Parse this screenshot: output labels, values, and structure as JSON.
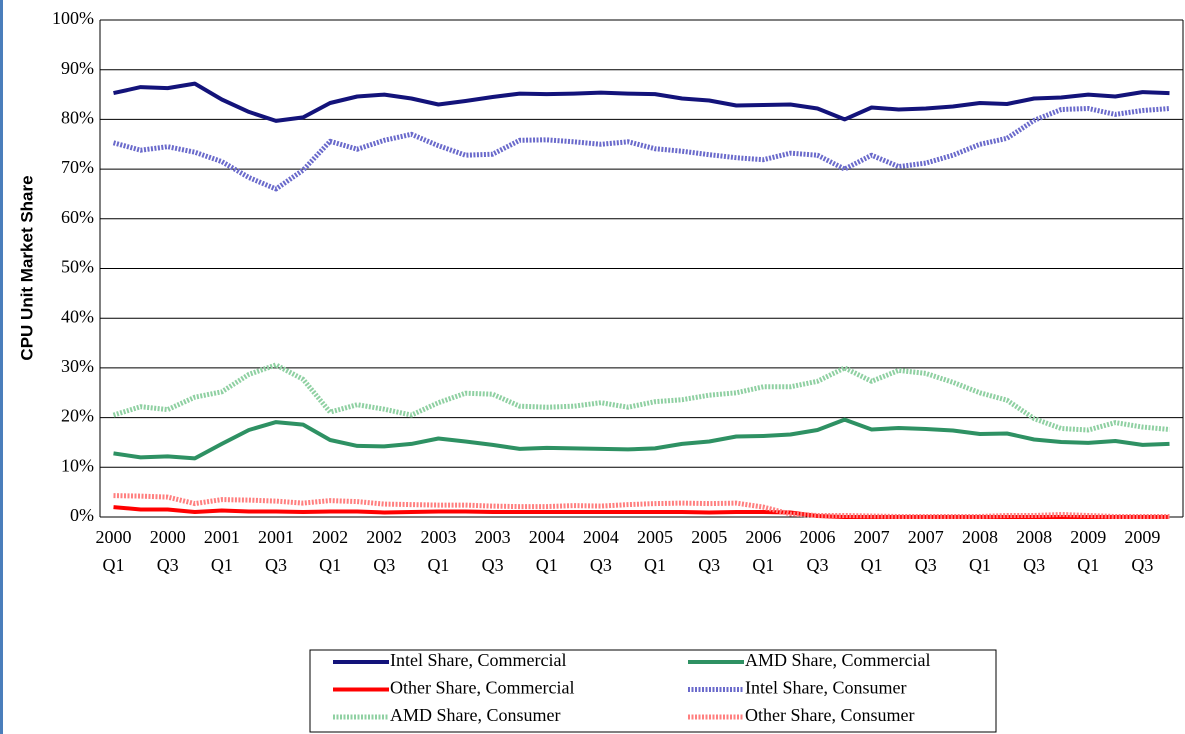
{
  "chart_data": {
    "type": "line",
    "y_label": "CPU Unit Market Share",
    "categories": [
      "2000 Q1",
      null,
      "2000 Q3",
      null,
      "2001 Q1",
      null,
      "2001 Q3",
      null,
      "2002 Q1",
      null,
      "2002 Q3",
      null,
      "2003 Q1",
      null,
      "2003 Q3",
      null,
      "2004 Q1",
      null,
      "2004 Q3",
      null,
      "2005 Q1",
      null,
      "2005 Q3",
      null,
      "2006 Q1",
      null,
      "2006 Q3",
      null,
      "2007 Q1",
      null,
      "2007 Q3",
      null,
      "2008 Q1",
      null,
      "2008 Q3",
      null,
      "2009 Q1",
      null,
      "2009 Q3",
      null
    ],
    "ylim": [
      0,
      100
    ],
    "yticks": [
      {
        "value": 0,
        "label": "0%"
      },
      {
        "value": 10,
        "label": "10%"
      },
      {
        "value": 20,
        "label": "20%"
      },
      {
        "value": 30,
        "label": "30%"
      },
      {
        "value": 40,
        "label": "40%"
      },
      {
        "value": 50,
        "label": "50%"
      },
      {
        "value": 60,
        "label": "60%"
      },
      {
        "value": 70,
        "label": "70%"
      },
      {
        "value": 80,
        "label": "80%"
      },
      {
        "value": 90,
        "label": "90%"
      },
      {
        "value": 100,
        "label": "100%"
      }
    ],
    "grid": true,
    "legend": "bottom",
    "series": [
      {
        "name": "Intel Share, Commercial",
        "color": "#13137a",
        "line_style": "solid",
        "values": [
          85.3,
          86.5,
          86.3,
          87.2,
          84,
          81.5,
          79.7,
          80.4,
          83.3,
          84.6,
          85,
          84.2,
          83,
          83.7,
          84.5,
          85.2,
          85.1,
          85.2,
          85.4,
          85.2,
          85.1,
          84.2,
          83.8,
          82.8,
          82.9,
          83,
          82.2,
          80,
          82.4,
          82,
          82.2,
          82.6,
          83.3,
          83.1,
          84.2,
          84.4,
          85,
          84.6,
          85.5,
          85.3
        ]
      },
      {
        "name": "AMD Share, Commercial",
        "color": "#2e9163",
        "line_style": "solid",
        "values": [
          12.8,
          12,
          12.2,
          11.8,
          14.7,
          17.5,
          19.1,
          18.6,
          15.5,
          14.3,
          14.2,
          14.7,
          15.8,
          15.2,
          14.5,
          13.7,
          13.9,
          13.8,
          13.7,
          13.6,
          13.8,
          14.7,
          15.2,
          16.2,
          16.3,
          16.6,
          17.5,
          19.6,
          17.6,
          17.9,
          17.7,
          17.4,
          16.7,
          16.8,
          15.6,
          15.1,
          14.9,
          15.3,
          14.5,
          14.7
        ]
      },
      {
        "name": "Other Share, Commercial",
        "color": "#ff0000",
        "line_style": "solid",
        "values": [
          2,
          1.5,
          1.5,
          1,
          1.3,
          1.1,
          1.1,
          1,
          1.1,
          1.1,
          0.9,
          1,
          1.1,
          1.1,
          1,
          1,
          1,
          1,
          1,
          1,
          1,
          1,
          0.9,
          1,
          1,
          0.9,
          0.2,
          0,
          0,
          0,
          0,
          0,
          0,
          0,
          0,
          0,
          0,
          0,
          0,
          0
        ]
      },
      {
        "name": "Intel Share, Consumer",
        "color": "#6a6acb",
        "line_style": "textured",
        "values": [
          75.3,
          73.8,
          74.5,
          73.4,
          71.5,
          68.3,
          66,
          69.8,
          75.6,
          74,
          75.8,
          77,
          74.7,
          72.8,
          73,
          75.8,
          75.9,
          75.5,
          75,
          75.5,
          74.1,
          73.6,
          72.9,
          72.3,
          71.9,
          73.2,
          72.8,
          70,
          72.8,
          70.5,
          71.2,
          72.8,
          75,
          76.2,
          79.8,
          82,
          82.2,
          81,
          81.8,
          82.2
        ]
      },
      {
        "name": "AMD Share, Consumer",
        "color": "#8fd0a2",
        "line_style": "textured",
        "values": [
          20.5,
          22.2,
          21.6,
          24.1,
          25.2,
          28.7,
          30.6,
          27.7,
          21.1,
          22.6,
          21.7,
          20.5,
          23,
          24.9,
          24.7,
          22.3,
          22.1,
          22.3,
          23,
          22.1,
          23.2,
          23.6,
          24.5,
          25,
          26.2,
          26.2,
          27.3,
          30,
          27.3,
          29.5,
          28.9,
          27.1,
          25,
          23.5,
          19.8,
          17.8,
          17.5,
          19,
          18.1,
          17.6
        ]
      },
      {
        "name": "Other Share, Consumer",
        "color": "#ff7f7f",
        "line_style": "textured",
        "values": [
          4.3,
          4.2,
          4,
          2.7,
          3.5,
          3.4,
          3.2,
          2.8,
          3.3,
          3.1,
          2.6,
          2.5,
          2.4,
          2.4,
          2.2,
          2.1,
          2.1,
          2.3,
          2.2,
          2.5,
          2.7,
          2.8,
          2.7,
          2.8,
          2,
          0.6,
          0.3,
          0.3,
          0.2,
          0.1,
          0.1,
          0.1,
          0.1,
          0.3,
          0.3,
          0.5,
          0.3,
          0.1,
          0.1,
          0.1
        ]
      }
    ]
  }
}
